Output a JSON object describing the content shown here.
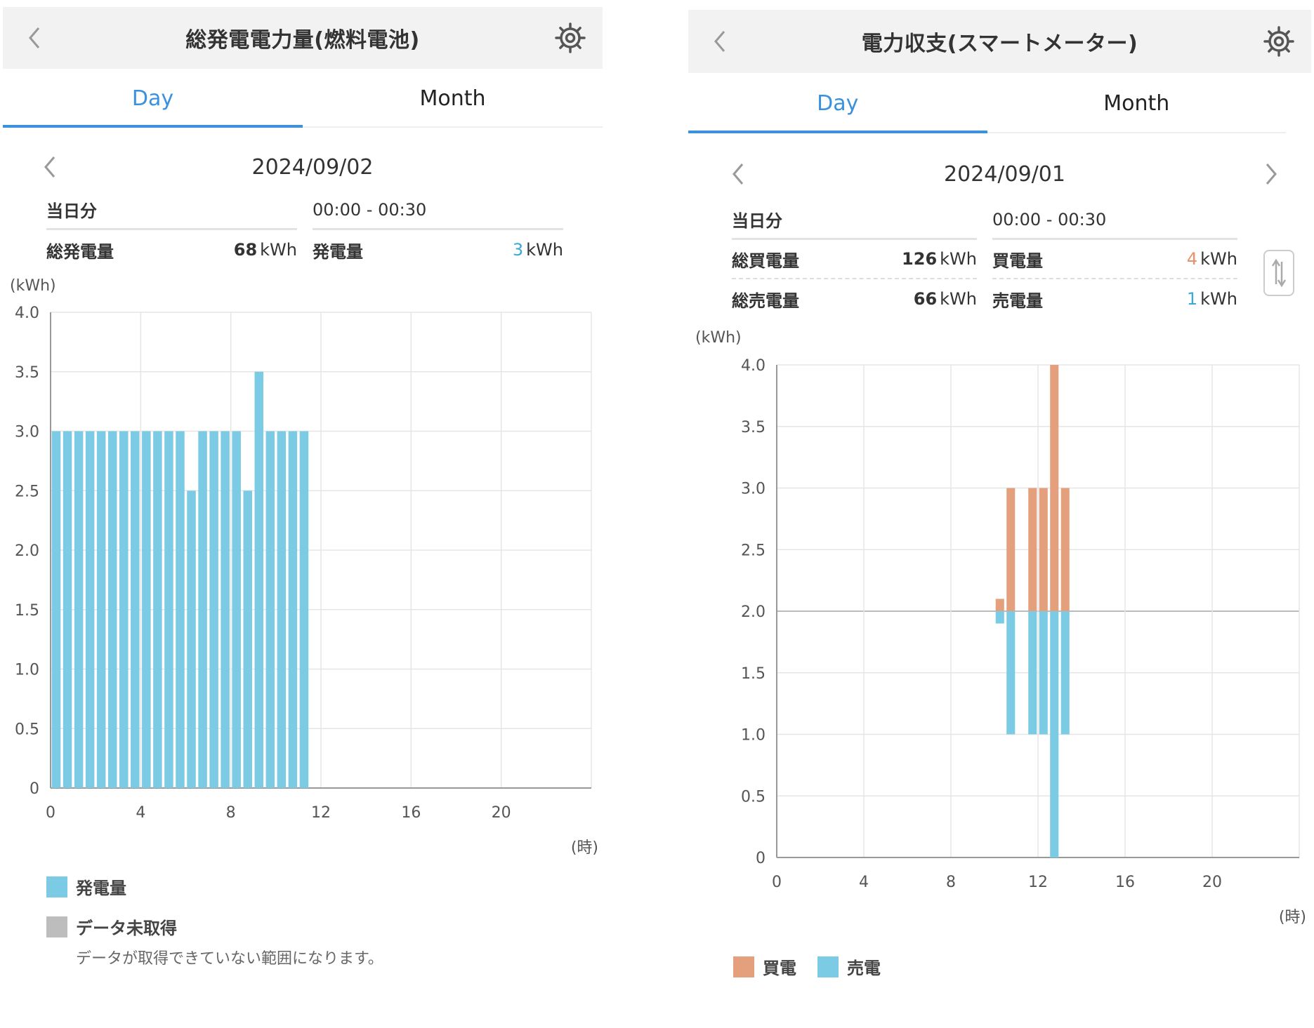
{
  "colors": {
    "accent": "#3a91de",
    "gen_bar": "#7ccbe4",
    "buy_bar": "#e4a07c",
    "sell_bar": "#7ccbe4",
    "nodata": "#bdbdbd"
  },
  "left": {
    "title": "総発電電力量(燃料電池)",
    "tabs": [
      {
        "label": "Day"
      },
      {
        "label": "Month"
      }
    ],
    "date": "2024/09/02",
    "summary": {
      "day_label": "当日分",
      "time_range": "00:00 - 00:30",
      "total_label": "総発電量",
      "total_value": "68",
      "total_unit": "kWh",
      "slot_label": "発電量",
      "slot_value": "3",
      "slot_unit": "kWh"
    },
    "legend": {
      "gen": "発電量",
      "nodata": "データ未取得",
      "nodata_note": "データが取得できていない範囲になります。"
    }
  },
  "right": {
    "title": "電力収支(スマートメーター)",
    "tabs": [
      {
        "label": "Day"
      },
      {
        "label": "Month"
      }
    ],
    "date": "2024/09/01",
    "summary": {
      "day_label": "当日分",
      "time_range": "00:00 - 00:30",
      "buy_total_label": "総買電量",
      "buy_total_value": "126",
      "buy_total_unit": "kWh",
      "buy_slot_label": "買電量",
      "buy_slot_value": "4",
      "buy_slot_unit": "kWh",
      "sell_total_label": "総売電量",
      "sell_total_value": "66",
      "sell_total_unit": "kWh",
      "sell_slot_label": "売電量",
      "sell_slot_value": "1",
      "sell_slot_unit": "kWh"
    },
    "legend": {
      "buy": "買電",
      "sell": "売電"
    }
  },
  "icons": {
    "back": "chevron-left-icon",
    "settings": "gear-icon",
    "prev": "chevron-left-icon",
    "next": "chevron-right-icon",
    "swap": "swap-vertical-icon"
  },
  "chart_data": [
    {
      "type": "bar",
      "x_label": "(時)",
      "y_label": "(kWh)",
      "ylim": [
        0,
        4.0
      ],
      "xlim": [
        0,
        24
      ],
      "y_ticks": [
        "0",
        "0.5",
        "1.0",
        "1.5",
        "2.0",
        "2.5",
        "3.0",
        "3.5",
        "4.0"
      ],
      "x_ticks": [
        "0",
        "4",
        "8",
        "12",
        "16",
        "20"
      ],
      "grid": true,
      "x_start": [
        0,
        0.5,
        1,
        1.5,
        2,
        2.5,
        3,
        3.5,
        4,
        4.5,
        5,
        5.5,
        6,
        6.5,
        7,
        7.5,
        8,
        8.5,
        9,
        9.5,
        10,
        10.5,
        11
      ],
      "series": [
        {
          "name": "発電量",
          "values": [
            3.0,
            3.0,
            3.0,
            3.0,
            3.0,
            3.0,
            3.0,
            3.0,
            3.0,
            3.0,
            3.0,
            3.0,
            2.5,
            3.0,
            3.0,
            3.0,
            3.0,
            2.5,
            3.5,
            3.0,
            3.0,
            3.0,
            3.0
          ]
        }
      ]
    },
    {
      "type": "bar",
      "x_label": "(時)",
      "y_label": "(kWh)",
      "ylim": [
        0,
        4.0
      ],
      "xlim": [
        0,
        24
      ],
      "y_ticks": [
        "0",
        "0.5",
        "1.0",
        "1.5",
        "2.0",
        "2.5",
        "3.0",
        "3.5",
        "4.0"
      ],
      "x_ticks": [
        "0",
        "4",
        "8",
        "12",
        "16",
        "20"
      ],
      "grid": true,
      "baseline": 2.0,
      "x_start": [
        10,
        10.5,
        11,
        11.5,
        12,
        12.5,
        13
      ],
      "series": [
        {
          "name": "買電",
          "direction": "up",
          "values": [
            0.1,
            1.0,
            0.0,
            1.0,
            1.0,
            2.0,
            1.0
          ]
        },
        {
          "name": "売電",
          "direction": "down",
          "values": [
            0.1,
            1.0,
            0.0,
            1.0,
            1.0,
            2.0,
            1.0
          ]
        }
      ]
    }
  ]
}
